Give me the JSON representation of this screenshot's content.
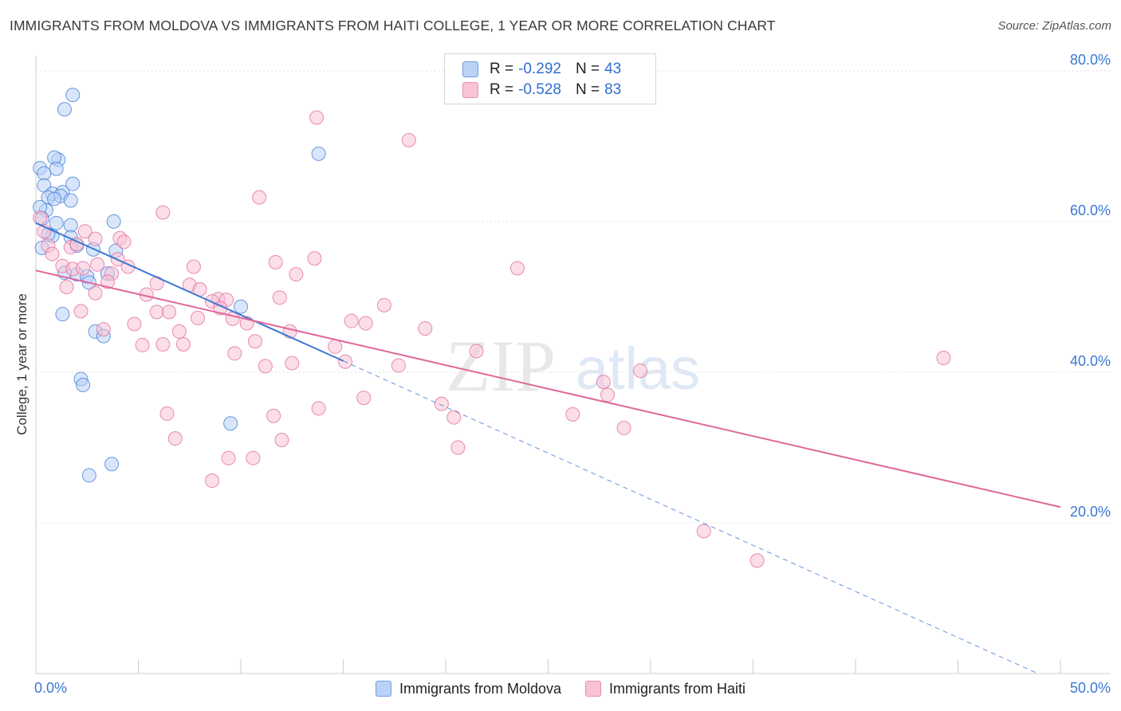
{
  "title": "IMMIGRANTS FROM MOLDOVA VS IMMIGRANTS FROM HAITI COLLEGE, 1 YEAR OR MORE CORRELATION CHART",
  "source": "Source: ZipAtlas.com",
  "watermark": {
    "zip": "ZIP",
    "atlas": "atlas"
  },
  "colors": {
    "moldova": "#3a78d4",
    "moldova_fill": "#b9d2f5",
    "haiti": "#e0679a",
    "haiti_fill": "#f8c3d6",
    "axis_label": "#3a78d4",
    "grid": "#e3e3e3"
  },
  "legend": {
    "rows": [
      {
        "r_label": "R =",
        "r_value": "-0.292",
        "n_label": "N =",
        "n_value": "43"
      },
      {
        "r_label": "R =",
        "r_value": "-0.528",
        "n_label": "N =",
        "n_value": "83"
      }
    ]
  },
  "bottom_legend": [
    "Immigrants from Moldova",
    "Immigrants from Haiti"
  ],
  "chart_data": {
    "type": "scatter",
    "xlabel": "",
    "ylabel": "College, 1 year or more",
    "xlim": [
      0,
      50
    ],
    "ylim": [
      0,
      82
    ],
    "x_tick_labels": [
      {
        "value": 0,
        "label": "0.0%"
      },
      {
        "value": 50,
        "label": "50.0%"
      }
    ],
    "y_tick_labels": [
      {
        "value": 20,
        "label": "20.0%"
      },
      {
        "value": 40,
        "label": "40.0%"
      },
      {
        "value": 60,
        "label": "60.0%"
      },
      {
        "value": 80,
        "label": "80.0%"
      }
    ],
    "grid": true,
    "legend_position": "top-center",
    "series": [
      {
        "name": "Immigrants from Moldova",
        "trend": {
          "x": [
            0,
            15
          ],
          "y": [
            59.8,
            41.5
          ],
          "extended_to": [
            48.9,
            0
          ]
        },
        "points": [
          [
            1.8,
            76.8
          ],
          [
            1.4,
            74.9
          ],
          [
            13.8,
            69.0
          ],
          [
            1.1,
            68.2
          ],
          [
            0.9,
            68.5
          ],
          [
            0.2,
            67.1
          ],
          [
            1.0,
            67.0
          ],
          [
            0.4,
            66.4
          ],
          [
            1.8,
            65.0
          ],
          [
            0.4,
            64.8
          ],
          [
            1.3,
            63.9
          ],
          [
            0.8,
            63.7
          ],
          [
            1.2,
            63.4
          ],
          [
            0.6,
            63.2
          ],
          [
            0.9,
            63.0
          ],
          [
            1.7,
            62.8
          ],
          [
            0.5,
            61.5
          ],
          [
            0.2,
            61.9
          ],
          [
            3.8,
            60.0
          ],
          [
            1.0,
            59.8
          ],
          [
            1.7,
            59.5
          ],
          [
            0.3,
            60.4
          ],
          [
            0.8,
            58.1
          ],
          [
            1.7,
            57.9
          ],
          [
            2.0,
            56.8
          ],
          [
            2.8,
            56.3
          ],
          [
            3.9,
            56.1
          ],
          [
            3.5,
            53.1
          ],
          [
            2.0,
            53.0
          ],
          [
            2.5,
            52.7
          ],
          [
            2.6,
            51.9
          ],
          [
            10.0,
            48.7
          ],
          [
            1.3,
            47.7
          ],
          [
            2.9,
            45.4
          ],
          [
            3.3,
            44.8
          ],
          [
            2.2,
            39.1
          ],
          [
            2.3,
            38.3
          ],
          [
            9.5,
            33.2
          ],
          [
            3.7,
            27.8
          ],
          [
            2.6,
            26.3
          ],
          [
            0.3,
            56.5
          ],
          [
            0.6,
            58.3
          ],
          [
            1.4,
            53.2
          ]
        ]
      },
      {
        "name": "Immigrants from Haiti",
        "trend": {
          "x": [
            0,
            50
          ],
          "y": [
            53.5,
            22.1
          ]
        },
        "points": [
          [
            13.7,
            73.8
          ],
          [
            18.2,
            70.8
          ],
          [
            6.2,
            61.2
          ],
          [
            10.9,
            63.2
          ],
          [
            0.2,
            60.5
          ],
          [
            0.4,
            58.7
          ],
          [
            2.4,
            58.7
          ],
          [
            2.9,
            57.7
          ],
          [
            4.1,
            57.8
          ],
          [
            4.3,
            57.3
          ],
          [
            0.6,
            56.8
          ],
          [
            1.7,
            56.6
          ],
          [
            0.8,
            55.7
          ],
          [
            13.6,
            55.1
          ],
          [
            11.7,
            54.6
          ],
          [
            3.0,
            54.3
          ],
          [
            4.5,
            54.0
          ],
          [
            7.7,
            54.0
          ],
          [
            23.5,
            53.8
          ],
          [
            1.3,
            54.1
          ],
          [
            1.8,
            53.7
          ],
          [
            2.3,
            53.8
          ],
          [
            3.7,
            53.1
          ],
          [
            12.7,
            53.0
          ],
          [
            3.5,
            52.0
          ],
          [
            5.9,
            51.8
          ],
          [
            7.5,
            51.6
          ],
          [
            1.5,
            51.3
          ],
          [
            8.0,
            51.0
          ],
          [
            2.9,
            50.5
          ],
          [
            5.4,
            50.3
          ],
          [
            11.9,
            49.9
          ],
          [
            8.9,
            49.7
          ],
          [
            9.3,
            49.6
          ],
          [
            8.6,
            49.4
          ],
          [
            17.0,
            48.9
          ],
          [
            9.0,
            48.5
          ],
          [
            2.2,
            48.1
          ],
          [
            5.9,
            48.0
          ],
          [
            6.5,
            48.0
          ],
          [
            7.9,
            47.2
          ],
          [
            9.6,
            47.1
          ],
          [
            10.3,
            46.5
          ],
          [
            15.4,
            46.8
          ],
          [
            16.1,
            46.5
          ],
          [
            4.8,
            46.4
          ],
          [
            19.0,
            45.8
          ],
          [
            7.0,
            45.4
          ],
          [
            12.4,
            45.4
          ],
          [
            3.3,
            45.7
          ],
          [
            10.7,
            44.1
          ],
          [
            5.2,
            43.6
          ],
          [
            6.2,
            43.7
          ],
          [
            7.2,
            43.7
          ],
          [
            14.6,
            43.4
          ],
          [
            21.5,
            42.8
          ],
          [
            9.7,
            42.5
          ],
          [
            15.1,
            41.4
          ],
          [
            12.5,
            41.2
          ],
          [
            17.7,
            40.9
          ],
          [
            11.2,
            40.8
          ],
          [
            29.5,
            40.2
          ],
          [
            44.3,
            41.9
          ],
          [
            27.7,
            38.7
          ],
          [
            27.9,
            37.0
          ],
          [
            16.0,
            36.6
          ],
          [
            19.8,
            35.8
          ],
          [
            13.8,
            35.2
          ],
          [
            6.4,
            34.5
          ],
          [
            20.4,
            34.0
          ],
          [
            11.6,
            34.2
          ],
          [
            26.2,
            34.4
          ],
          [
            28.7,
            32.6
          ],
          [
            6.8,
            31.2
          ],
          [
            12.0,
            31.0
          ],
          [
            20.6,
            30.0
          ],
          [
            9.4,
            28.6
          ],
          [
            10.6,
            28.6
          ],
          [
            8.6,
            25.6
          ],
          [
            32.6,
            18.9
          ],
          [
            35.2,
            15.0
          ],
          [
            4.0,
            55.0
          ],
          [
            2.0,
            57.0
          ]
        ]
      }
    ]
  }
}
